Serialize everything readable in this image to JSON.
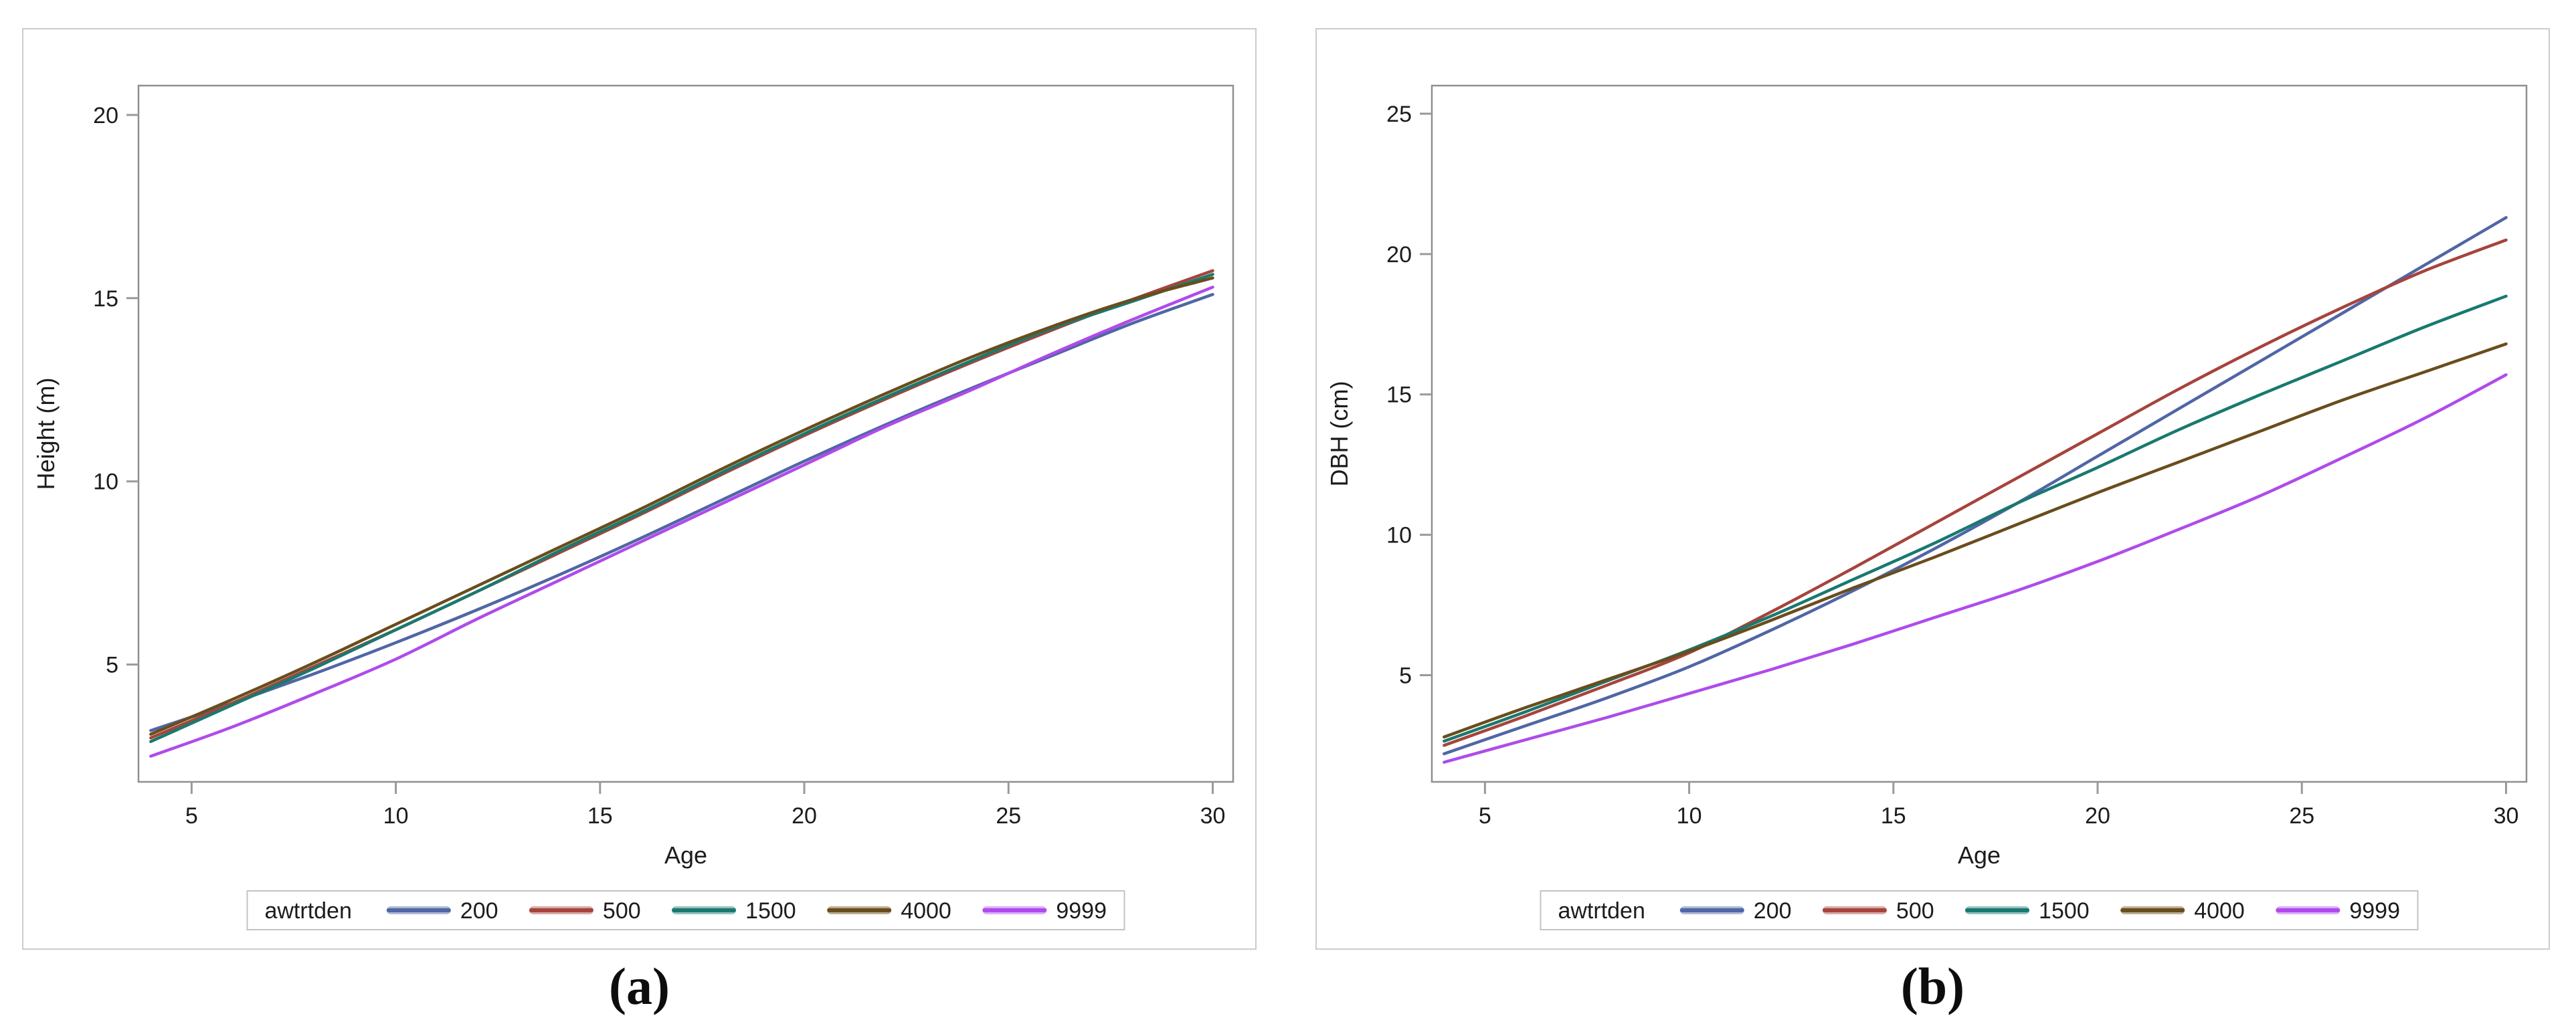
{
  "captions": {
    "a": "(a)",
    "b": "(b)"
  },
  "style": {
    "background": "#ffffff",
    "panel_border": "#cccccc",
    "plot_border": "#8f8f8f",
    "tick_color": "#9a9a9a",
    "text_color": "#1c1c1c",
    "legend_border": "#c3c3c3",
    "line_width": 4.5
  },
  "chart_data": [
    {
      "type": "line",
      "panel": "a",
      "title": "",
      "xlabel": "Age",
      "ylabel": "Height (m)",
      "xlim": [
        3.7,
        30.5
      ],
      "ylim": [
        1.8,
        20.8
      ],
      "x_ticks": [
        5,
        10,
        15,
        20,
        25,
        30
      ],
      "y_ticks": [
        5,
        10,
        15,
        20
      ],
      "grid": false,
      "legend_position": "bottom",
      "legend_title": "awtrtden",
      "x": [
        4,
        6,
        8,
        10,
        12,
        14,
        16,
        18,
        20,
        22,
        24,
        26,
        28,
        30
      ],
      "series": [
        {
          "name": "200",
          "color": "#5066A5",
          "values": [
            3.2,
            3.95,
            4.75,
            5.6,
            6.5,
            7.45,
            8.45,
            9.5,
            10.55,
            11.55,
            12.5,
            13.4,
            14.3,
            15.1
          ]
        },
        {
          "name": "500",
          "color": "#A6443C",
          "values": [
            3.0,
            3.95,
            4.95,
            5.95,
            7.0,
            8.05,
            9.1,
            10.2,
            11.25,
            12.25,
            13.2,
            14.1,
            14.95,
            15.75
          ]
        },
        {
          "name": "1500",
          "color": "#19796F",
          "values": [
            2.9,
            3.9,
            4.9,
            5.95,
            7.0,
            8.1,
            9.15,
            10.25,
            11.3,
            12.3,
            13.25,
            14.15,
            14.9,
            15.65
          ]
        },
        {
          "name": "4000",
          "color": "#6A4D1C",
          "values": [
            3.1,
            4.05,
            5.05,
            6.1,
            7.15,
            8.2,
            9.25,
            10.35,
            11.4,
            12.4,
            13.35,
            14.2,
            14.95,
            15.55
          ]
        },
        {
          "name": "9999",
          "color": "#AF4BEB",
          "values": [
            2.5,
            3.3,
            4.2,
            5.15,
            6.25,
            7.3,
            8.35,
            9.4,
            10.45,
            11.5,
            12.45,
            13.45,
            14.4,
            15.3
          ]
        }
      ]
    },
    {
      "type": "line",
      "panel": "b",
      "title": "",
      "xlabel": "Age",
      "ylabel": "DBH (cm)",
      "xlim": [
        3.7,
        30.5
      ],
      "ylim": [
        1.2,
        26.0
      ],
      "x_ticks": [
        5,
        10,
        15,
        20,
        25,
        30
      ],
      "y_ticks": [
        5,
        10,
        15,
        20,
        25
      ],
      "grid": false,
      "legend_position": "bottom",
      "legend_title": "awtrtden",
      "x": [
        4,
        6,
        8,
        10,
        12,
        14,
        16,
        18,
        20,
        22,
        24,
        26,
        28,
        30
      ],
      "series": [
        {
          "name": "200",
          "color": "#5066A5",
          "values": [
            2.2,
            3.2,
            4.2,
            5.3,
            6.6,
            8.0,
            9.5,
            11.1,
            12.8,
            14.5,
            16.2,
            17.9,
            19.6,
            21.3
          ]
        },
        {
          "name": "500",
          "color": "#A6443C",
          "values": [
            2.5,
            3.55,
            4.65,
            5.8,
            7.25,
            8.8,
            10.4,
            12.0,
            13.6,
            15.2,
            16.7,
            18.1,
            19.4,
            20.5
          ]
        },
        {
          "name": "1500",
          "color": "#19796F",
          "values": [
            2.65,
            3.7,
            4.8,
            5.9,
            7.1,
            8.4,
            9.7,
            11.1,
            12.4,
            13.75,
            15.0,
            16.2,
            17.4,
            18.5
          ]
        },
        {
          "name": "4000",
          "color": "#6A4D1C",
          "values": [
            2.8,
            3.85,
            4.85,
            5.85,
            6.95,
            8.1,
            9.2,
            10.35,
            11.5,
            12.6,
            13.7,
            14.8,
            15.8,
            16.8
          ]
        },
        {
          "name": "9999",
          "color": "#AF4BEB",
          "values": [
            1.9,
            2.7,
            3.5,
            4.35,
            5.2,
            6.1,
            7.05,
            8.0,
            9.05,
            10.2,
            11.4,
            12.75,
            14.15,
            15.7
          ]
        }
      ]
    }
  ]
}
